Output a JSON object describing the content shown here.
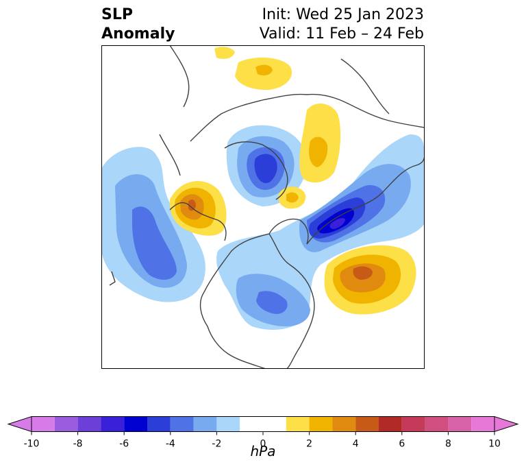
{
  "header": {
    "title_line1": "SLP",
    "title_line2": "Anomaly",
    "init_label": "Init: Wed 25 Jan 2023",
    "valid_label": "Valid: 11 Feb – 24 Feb"
  },
  "map": {
    "projection": "polar-stereographic-north",
    "field": "sea level pressure anomaly"
  },
  "colorbar": {
    "units": "hPa",
    "tick_labels": [
      "-10",
      "-8",
      "-6",
      "-4",
      "-2",
      "0",
      "2",
      "4",
      "6",
      "8",
      "10"
    ],
    "levels": [
      -10,
      -9,
      -8,
      -7,
      -6,
      -5,
      -4,
      -3,
      -2,
      -1,
      1,
      2,
      3,
      4,
      5,
      6,
      7,
      8,
      9,
      10
    ],
    "colors": [
      "#d67be8",
      "#9c5ce0",
      "#6b3fd8",
      "#3a20d8",
      "#0000d0",
      "#2b3ed8",
      "#4f72e6",
      "#78aaf0",
      "#aad6fa",
      "#ffffff",
      "#fde047",
      "#f0b400",
      "#e08a10",
      "#c85a18",
      "#b22a28",
      "#c43a58",
      "#d04e80",
      "#d862a8",
      "#e878d8"
    ],
    "extend": "both"
  },
  "colors": {
    "neg_1": "#aad6fa",
    "neg_2": "#78aaf0",
    "neg_3": "#4f72e6",
    "neg_4": "#2b3ed8",
    "neg_5": "#0000d0",
    "neg_6": "#3a20d8",
    "pos_1": "#fde047",
    "pos_2": "#f0b400",
    "pos_3": "#e08a10",
    "pos_4": "#c85a18",
    "coast": "#404040"
  }
}
